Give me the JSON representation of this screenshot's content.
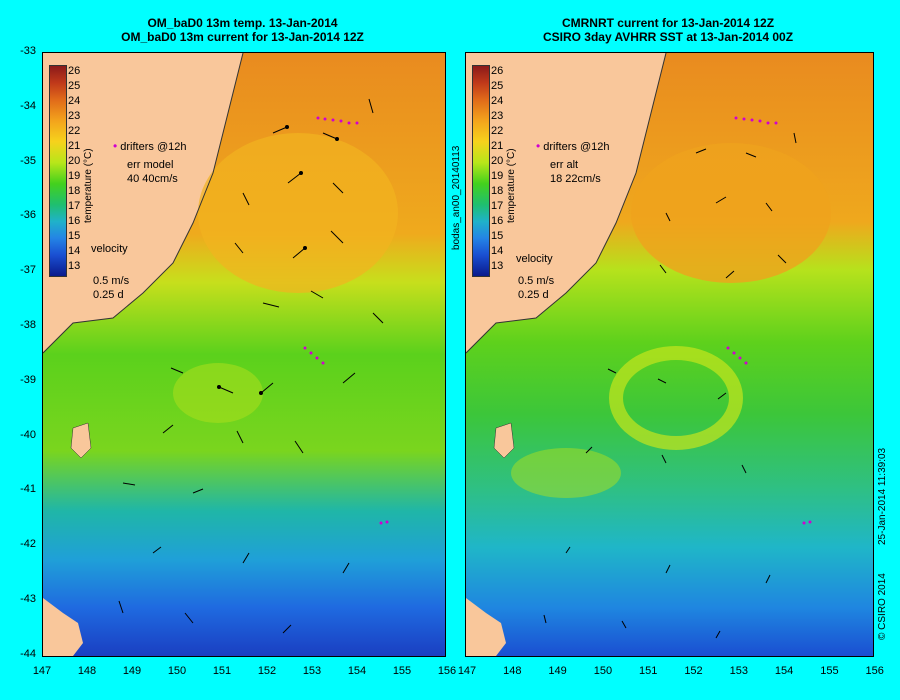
{
  "left": {
    "title_line1": "OM_baD0 13m temp. 13-Jan-2014",
    "title_line2": "OM_baD0 13m current for 13-Jan-2014 12Z",
    "legend_drifters": "drifters @12h",
    "err_label": "err model",
    "err_value": "40 40cm/s",
    "velocity_label": "velocity",
    "velocity_scale": "0.5 m/s",
    "velocity_time": "0.25 d",
    "colorbar_title": "temperature (°C)"
  },
  "right": {
    "title_line1": "CMRNRT current for 13-Jan-2014 12Z",
    "title_line2": "CSIRO 3day AVHRR SST at 13-Jan-2014 00Z",
    "legend_drifters": "drifters @12h",
    "err_label": "err alt",
    "err_value": "18 22cm/s",
    "velocity_label": "velocity",
    "velocity_scale": "0.5 m/s",
    "velocity_time": "0.25 d",
    "colorbar_title": "temperature (°C)"
  },
  "side_label_left": "bodas_an00_20140113",
  "side_label_right": "25-Jan-2014 11:39:03",
  "copyright": "© CSIRO 2014",
  "y_ticks": [
    "-33",
    "-34",
    "-35",
    "-36",
    "-37",
    "-38",
    "-39",
    "-40",
    "-41",
    "-42",
    "-43",
    "-44"
  ],
  "x_ticks": [
    "147",
    "148",
    "149",
    "150",
    "151",
    "152",
    "153",
    "154",
    "155",
    "156"
  ],
  "colorbar_ticks": [
    "26",
    "25",
    "24",
    "23",
    "22",
    "21",
    "20",
    "19",
    "18",
    "17",
    "16",
    "15",
    "14",
    "13"
  ],
  "colors": {
    "background": "#00ffff",
    "land": "#f9c79b",
    "warm": "#e98b1f",
    "mid": "#7cd51e",
    "cool": "#1fb6d8",
    "cold": "#1a4fd2",
    "drifter": "#d000d0"
  }
}
